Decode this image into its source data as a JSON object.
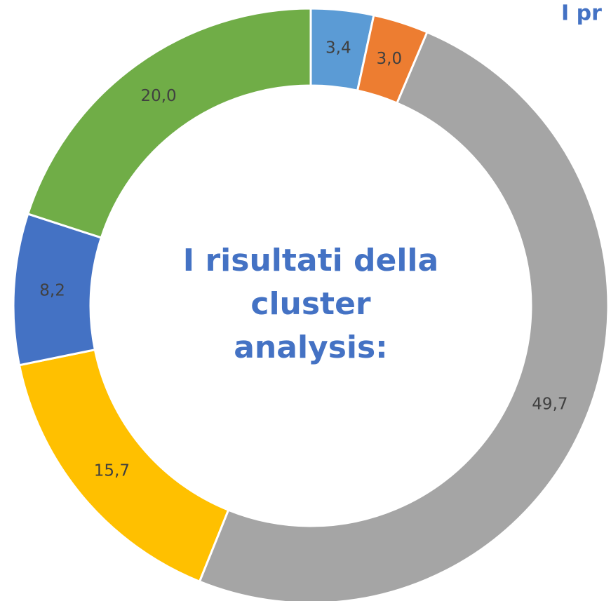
{
  "chart_data": {
    "type": "donut",
    "title": "I pr",
    "center_text": [
      "I risultati della",
      "cluster",
      "analysis:"
    ],
    "values": [
      3.4,
      3.0,
      49.7,
      15.7,
      8.2,
      20.0
    ],
    "value_labels": [
      "3,4",
      "3,0",
      "49,7",
      "15,7",
      "8,2",
      "20,0"
    ],
    "colors": [
      "#5b9bd5",
      "#ed7d31",
      "#a5a5a5",
      "#ffc000",
      "#4472c4",
      "#70ad47"
    ]
  }
}
